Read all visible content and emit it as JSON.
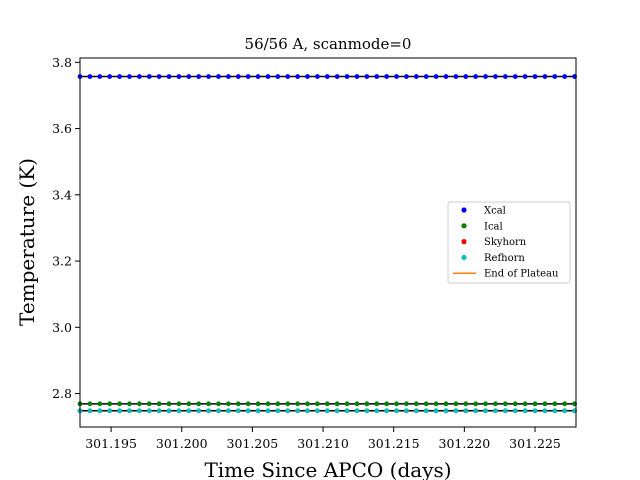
{
  "chart_data": {
    "type": "scatter",
    "title": "56/56 A, scanmode=0",
    "xlabel": "Time Since APCO (days)",
    "ylabel": "Temperature (K)",
    "xlim": [
      301.1928,
      301.2279
    ],
    "ylim": [
      2.699,
      3.813
    ],
    "xticks": [
      301.195,
      301.2,
      301.205,
      301.21,
      301.215,
      301.22,
      301.225
    ],
    "xtick_labels": [
      "301.195",
      "301.200",
      "301.205",
      "301.210",
      "301.215",
      "301.220",
      "301.225"
    ],
    "yticks": [
      2.8,
      3.0,
      3.2,
      3.4,
      3.6,
      3.8
    ],
    "ytick_labels": [
      "2.8",
      "3.0",
      "3.2",
      "3.4",
      "3.6",
      "3.8"
    ],
    "grid": false,
    "legend_position": "center-right",
    "series": [
      {
        "name": "Xcal",
        "marker": "dot",
        "color": "#0000ff",
        "line_color": "#000000",
        "y": 3.757
      },
      {
        "name": "Ical",
        "marker": "dot",
        "color": "#008000",
        "line_color": "#000000",
        "y": 2.769
      },
      {
        "name": "Skyhorn",
        "marker": "dot",
        "color": "#ff0000",
        "line_color": "#000000",
        "y": 2.748
      },
      {
        "name": "Refhorn",
        "marker": "dot",
        "color": "#00bfbf",
        "line_color": "#000000",
        "y": 2.748
      },
      {
        "name": "End of Plateau",
        "marker": "line",
        "color": "#ff7f0e"
      }
    ],
    "x_start": 301.1928,
    "x_end": 301.2279,
    "x_step": 0.0007
  }
}
